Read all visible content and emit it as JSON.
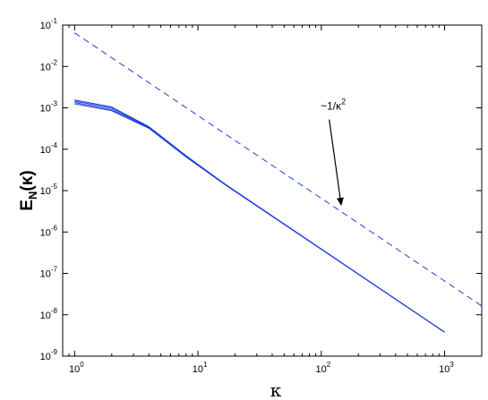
{
  "chart_data": {
    "type": "line",
    "title": "",
    "xlabel": "κ",
    "ylabel": {
      "main": "E",
      "sub": "N",
      "arg": "(κ)"
    },
    "xscale": "log",
    "yscale": "log",
    "xlim": [
      0.8,
      2000
    ],
    "ylim": [
      1e-09,
      0.1
    ],
    "x_ticks": [
      {
        "value": 1,
        "base": "10",
        "exp": "0"
      },
      {
        "value": 10,
        "base": "10",
        "exp": "1"
      },
      {
        "value": 100,
        "base": "10",
        "exp": "2"
      },
      {
        "value": 1000,
        "base": "10",
        "exp": "3"
      }
    ],
    "y_ticks": [
      {
        "value": 1e-09,
        "base": "10",
        "exp": "-9"
      },
      {
        "value": 1e-08,
        "base": "10",
        "exp": "-8"
      },
      {
        "value": 1e-07,
        "base": "10",
        "exp": "-7"
      },
      {
        "value": 1e-06,
        "base": "10",
        "exp": "-6"
      },
      {
        "value": 1e-05,
        "base": "10",
        "exp": "-5"
      },
      {
        "value": 0.0001,
        "base": "10",
        "exp": "-4"
      },
      {
        "value": 0.001,
        "base": "10",
        "exp": "-3"
      },
      {
        "value": 0.01,
        "base": "10",
        "exp": "-2"
      },
      {
        "value": 0.1,
        "base": "10",
        "exp": "-1"
      }
    ],
    "grid": false,
    "series": [
      {
        "style": "solid",
        "color": "#1f3fd8",
        "points": [
          [
            1,
            0.00155
          ],
          [
            2,
            0.00105
          ],
          [
            4,
            0.00035
          ],
          [
            8,
            7e-05
          ],
          [
            16,
            1.55e-05
          ],
          [
            1000,
            3.8e-09
          ]
        ]
      },
      {
        "style": "solid",
        "color": "#1f3fd8",
        "points": [
          [
            1,
            0.00145
          ],
          [
            2,
            0.00098
          ],
          [
            4,
            0.00034
          ],
          [
            8,
            6.8e-05
          ],
          [
            16,
            1.53e-05
          ],
          [
            1000,
            3.8e-09
          ]
        ]
      },
      {
        "style": "solid",
        "color": "#1f3fd8",
        "points": [
          [
            1,
            0.00135
          ],
          [
            2,
            0.0009
          ],
          [
            4,
            0.00033
          ],
          [
            8,
            6.6e-05
          ],
          [
            16,
            1.5e-05
          ],
          [
            1000,
            3.8e-09
          ]
        ]
      },
      {
        "style": "solid",
        "color": "#1f3fd8",
        "points": [
          [
            1,
            0.00125
          ],
          [
            2,
            0.00085
          ],
          [
            4,
            0.00032
          ],
          [
            8,
            6.5e-05
          ],
          [
            16,
            1.5e-05
          ],
          [
            1000,
            3.8e-09
          ]
        ]
      },
      {
        "style": "dashed",
        "color": "#1f3fd8",
        "points": [
          [
            1,
            0.065
          ],
          [
            2000,
            1.63e-08
          ]
        ]
      }
    ],
    "annotation": {
      "text_prefix": "~1/κ",
      "text_sup": "2",
      "text_at": [
        125,
        0.0009
      ],
      "arrow_from": [
        116,
        0.00052
      ],
      "arrow_to": [
        145,
        4.5e-06
      ]
    }
  }
}
